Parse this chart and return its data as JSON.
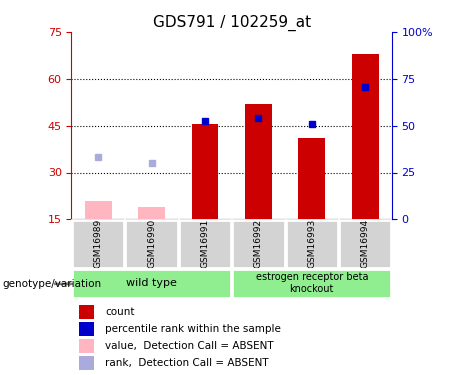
{
  "title": "GDS791 / 102259_at",
  "samples": [
    "GSM16989",
    "GSM16990",
    "GSM16991",
    "GSM16992",
    "GSM16993",
    "GSM16994"
  ],
  "bar_values_present": [
    45.5,
    52.0,
    41.0,
    68.0
  ],
  "bar_indices_present": [
    2,
    3,
    4,
    5
  ],
  "bar_values_absent": [
    21.0,
    19.0
  ],
  "bar_indices_absent": [
    0,
    1
  ],
  "rank_values_present": [
    46.5,
    47.5,
    45.5,
    57.5
  ],
  "rank_indices_present": [
    2,
    3,
    4,
    5
  ],
  "rank_values_absent": [
    35.0,
    33.0
  ],
  "rank_indices_absent": [
    0,
    1
  ],
  "ylim_left": [
    15,
    75
  ],
  "ylim_right": [
    0,
    100
  ],
  "yticks_left": [
    15,
    30,
    45,
    60,
    75
  ],
  "yticks_right": [
    0,
    25,
    50,
    75,
    100
  ],
  "ytick_labels_right": [
    "0",
    "25",
    "50",
    "75",
    "100%"
  ],
  "bar_color_present": "#cc0000",
  "bar_color_absent": "#FFB6C1",
  "rank_color_present": "#0000cc",
  "rank_color_absent": "#aaaadd",
  "bar_width": 0.5,
  "legend_items": [
    {
      "color": "#cc0000",
      "label": "count"
    },
    {
      "color": "#0000cc",
      "label": "percentile rank within the sample"
    },
    {
      "color": "#FFB6C1",
      "label": "value,  Detection Call = ABSENT"
    },
    {
      "color": "#aaaadd",
      "label": "rank,  Detection Call = ABSENT"
    }
  ],
  "title_fontsize": 11,
  "left_label_color": "#cc0000",
  "right_label_color": "#0000cc",
  "wt_label": "wild type",
  "ko_label": "estrogen receptor beta\nknockout",
  "group_label": "genotype/variation"
}
